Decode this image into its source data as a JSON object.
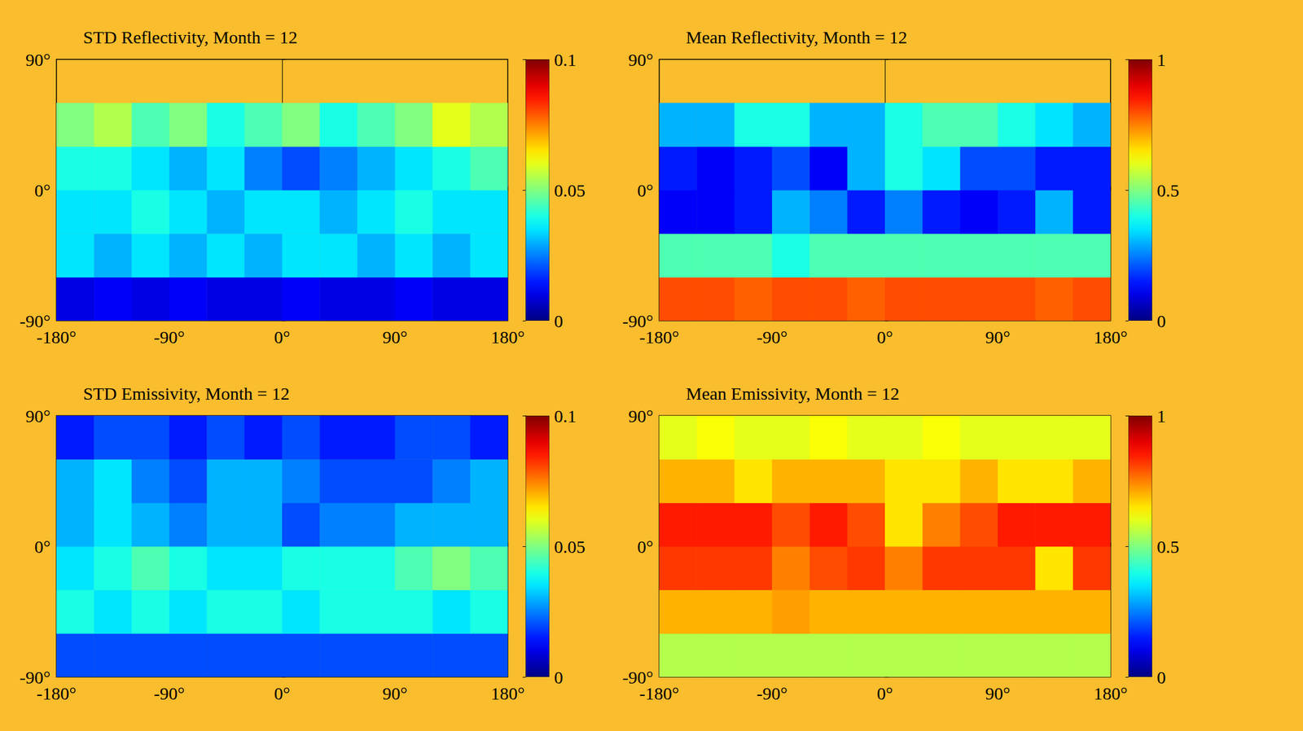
{
  "chart_data": [
    {
      "type": "heatmap",
      "title": "STD Reflectivity, Month = 12",
      "xlim": [
        -180,
        180
      ],
      "ylim": [
        -90,
        90
      ],
      "xticks": [
        {
          "value": -180,
          "label": "-180°"
        },
        {
          "value": -90,
          "label": "-90°"
        },
        {
          "value": 0,
          "label": "0°"
        },
        {
          "value": 90,
          "label": "90°"
        },
        {
          "value": 180,
          "label": "180°"
        }
      ],
      "yticks": [
        {
          "value": -90,
          "label": "-90°"
        },
        {
          "value": 0,
          "label": "0°"
        },
        {
          "value": 90,
          "label": "90°"
        }
      ],
      "x_edges": [
        -180,
        -150,
        -120,
        -90,
        -60,
        -30,
        0,
        30,
        60,
        90,
        120,
        150,
        180
      ],
      "y_edges": [
        -90,
        -60,
        -30,
        0,
        30,
        60,
        90
      ],
      "values": [
        [
          0.01,
          0.012,
          0.01,
          0.012,
          0.01,
          0.01,
          0.012,
          0.01,
          0.01,
          0.012,
          0.01,
          0.01
        ],
        [
          0.035,
          0.03,
          0.035,
          0.03,
          0.035,
          0.03,
          0.035,
          0.035,
          0.03,
          0.035,
          0.03,
          0.035
        ],
        [
          0.035,
          0.035,
          0.04,
          0.035,
          0.03,
          0.035,
          0.035,
          0.03,
          0.035,
          0.04,
          0.035,
          0.035
        ],
        [
          0.04,
          0.04,
          0.035,
          0.03,
          0.035,
          0.025,
          0.02,
          0.025,
          0.03,
          0.035,
          0.04,
          0.045
        ],
        [
          0.05,
          0.055,
          0.045,
          0.05,
          0.04,
          0.045,
          0.05,
          0.04,
          0.045,
          0.05,
          0.06,
          0.055
        ],
        [
          null,
          null,
          null,
          null,
          null,
          null,
          null,
          null,
          null,
          null,
          null,
          null
        ]
      ],
      "colorbar_range": [
        0,
        0.1
      ],
      "colorbar_ticks": [
        0,
        0.05,
        0.1
      ]
    },
    {
      "type": "heatmap",
      "title": "Mean Reflectivity, Month = 12",
      "xlim": [
        -180,
        180
      ],
      "ylim": [
        -90,
        90
      ],
      "xticks": [
        {
          "value": -180,
          "label": "-180°"
        },
        {
          "value": -90,
          "label": "-90°"
        },
        {
          "value": 0,
          "label": "0°"
        },
        {
          "value": 90,
          "label": "90°"
        },
        {
          "value": 180,
          "label": "180°"
        }
      ],
      "yticks": [
        {
          "value": -90,
          "label": "-90°"
        },
        {
          "value": 0,
          "label": "0°"
        },
        {
          "value": 90,
          "label": "90°"
        }
      ],
      "x_edges": [
        -180,
        -150,
        -120,
        -90,
        -60,
        -30,
        0,
        30,
        60,
        90,
        120,
        150,
        180
      ],
      "y_edges": [
        -90,
        -60,
        -30,
        0,
        30,
        60,
        90
      ],
      "values": [
        [
          0.8,
          0.8,
          0.78,
          0.8,
          0.8,
          0.78,
          0.8,
          0.8,
          0.8,
          0.8,
          0.78,
          0.8
        ],
        [
          0.45,
          0.45,
          0.45,
          0.4,
          0.45,
          0.45,
          0.45,
          0.45,
          0.45,
          0.45,
          0.45,
          0.45
        ],
        [
          0.12,
          0.12,
          0.15,
          0.3,
          0.25,
          0.15,
          0.25,
          0.15,
          0.12,
          0.15,
          0.3,
          0.15
        ],
        [
          0.15,
          0.12,
          0.15,
          0.2,
          0.12,
          0.3,
          0.4,
          0.35,
          0.2,
          0.2,
          0.15,
          0.15
        ],
        [
          0.3,
          0.3,
          0.4,
          0.4,
          0.3,
          0.3,
          0.4,
          0.45,
          0.45,
          0.4,
          0.35,
          0.3
        ],
        [
          null,
          null,
          null,
          null,
          null,
          null,
          null,
          null,
          null,
          null,
          null,
          null
        ]
      ],
      "colorbar_range": [
        0,
        1
      ],
      "colorbar_ticks": [
        0,
        0.5,
        1
      ]
    },
    {
      "type": "heatmap",
      "title": "STD Emissivity, Month = 12",
      "xlim": [
        -180,
        180
      ],
      "ylim": [
        -90,
        90
      ],
      "xticks": [
        {
          "value": -180,
          "label": "-180°"
        },
        {
          "value": -90,
          "label": "-90°"
        },
        {
          "value": 0,
          "label": "0°"
        },
        {
          "value": 90,
          "label": "90°"
        },
        {
          "value": 180,
          "label": "180°"
        }
      ],
      "yticks": [
        {
          "value": -90,
          "label": "-90°"
        },
        {
          "value": 0,
          "label": "0°"
        },
        {
          "value": 90,
          "label": "90°"
        }
      ],
      "x_edges": [
        -180,
        -150,
        -120,
        -90,
        -60,
        -30,
        0,
        30,
        60,
        90,
        120,
        150,
        180
      ],
      "y_edges": [
        -90,
        -60,
        -30,
        0,
        30,
        60,
        90
      ],
      "values": [
        [
          0.02,
          0.02,
          0.02,
          0.02,
          0.02,
          0.02,
          0.02,
          0.02,
          0.02,
          0.02,
          0.02,
          0.02
        ],
        [
          0.04,
          0.035,
          0.04,
          0.035,
          0.04,
          0.04,
          0.035,
          0.04,
          0.04,
          0.04,
          0.035,
          0.04
        ],
        [
          0.035,
          0.04,
          0.045,
          0.04,
          0.035,
          0.035,
          0.04,
          0.04,
          0.04,
          0.045,
          0.05,
          0.045
        ],
        [
          0.03,
          0.035,
          0.03,
          0.025,
          0.03,
          0.03,
          0.02,
          0.025,
          0.025,
          0.03,
          0.03,
          0.03
        ],
        [
          0.03,
          0.035,
          0.025,
          0.02,
          0.03,
          0.03,
          0.025,
          0.02,
          0.02,
          0.02,
          0.025,
          0.03
        ],
        [
          0.015,
          0.02,
          0.02,
          0.015,
          0.02,
          0.015,
          0.02,
          0.015,
          0.015,
          0.02,
          0.02,
          0.015
        ]
      ],
      "colorbar_range": [
        0,
        0.1
      ],
      "colorbar_ticks": [
        0,
        0.05,
        0.1
      ]
    },
    {
      "type": "heatmap",
      "title": "Mean Emissivity, Month = 12",
      "xlim": [
        -180,
        180
      ],
      "ylim": [
        -90,
        90
      ],
      "xticks": [
        {
          "value": -180,
          "label": "-180°"
        },
        {
          "value": -90,
          "label": "-90°"
        },
        {
          "value": 0,
          "label": "0°"
        },
        {
          "value": 90,
          "label": "90°"
        },
        {
          "value": 180,
          "label": "180°"
        }
      ],
      "yticks": [
        {
          "value": -90,
          "label": "-90°"
        },
        {
          "value": 0,
          "label": "0°"
        },
        {
          "value": 90,
          "label": "90°"
        }
      ],
      "x_edges": [
        -180,
        -150,
        -120,
        -90,
        -60,
        -30,
        0,
        30,
        60,
        90,
        120,
        150,
        180
      ],
      "y_edges": [
        -90,
        -60,
        -30,
        0,
        30,
        60,
        90
      ],
      "values": [
        [
          0.55,
          0.55,
          0.55,
          0.55,
          0.55,
          0.55,
          0.55,
          0.55,
          0.55,
          0.55,
          0.55,
          0.55
        ],
        [
          0.7,
          0.7,
          0.7,
          0.72,
          0.7,
          0.7,
          0.7,
          0.7,
          0.7,
          0.7,
          0.7,
          0.7
        ],
        [
          0.82,
          0.82,
          0.82,
          0.75,
          0.8,
          0.82,
          0.75,
          0.82,
          0.82,
          0.82,
          0.65,
          0.82
        ],
        [
          0.85,
          0.85,
          0.85,
          0.8,
          0.85,
          0.8,
          0.65,
          0.75,
          0.8,
          0.85,
          0.85,
          0.85
        ],
        [
          0.7,
          0.7,
          0.65,
          0.7,
          0.7,
          0.7,
          0.65,
          0.65,
          0.7,
          0.65,
          0.65,
          0.7
        ],
        [
          0.6,
          0.62,
          0.6,
          0.6,
          0.62,
          0.6,
          0.6,
          0.62,
          0.6,
          0.6,
          0.6,
          0.6
        ]
      ],
      "colorbar_range": [
        0,
        1
      ],
      "colorbar_ticks": [
        0,
        0.5,
        1
      ]
    }
  ]
}
